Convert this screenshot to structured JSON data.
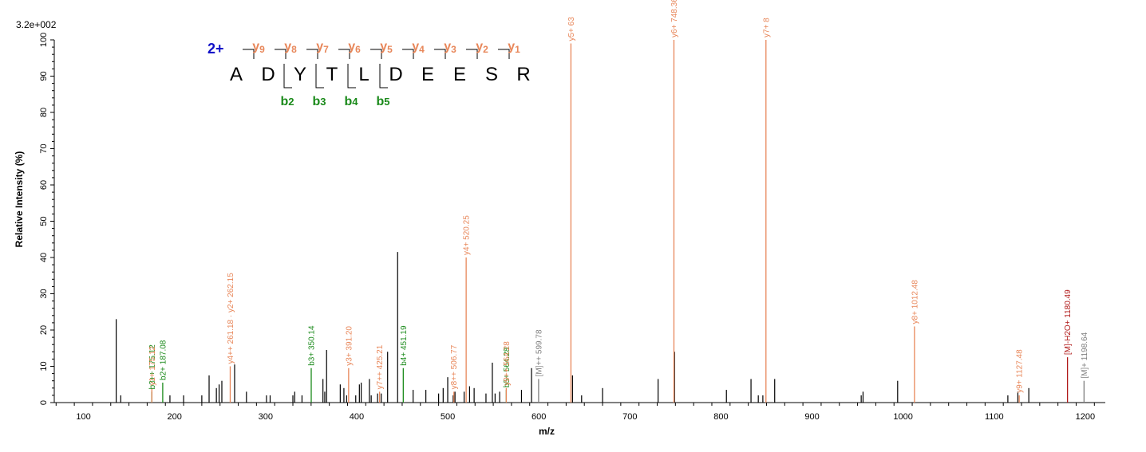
{
  "chart_data": {
    "type": "bar",
    "intensity_scale": "3.2e+002",
    "xlabel": "m/z",
    "ylabel": "Relative   Intensity (%)",
    "xlim": [
      68,
      1222
    ],
    "ylim": [
      0,
      100
    ],
    "xticks": [
      100,
      200,
      300,
      400,
      500,
      600,
      700,
      800,
      900,
      1000,
      1100,
      1200
    ],
    "yticks": [
      0,
      10,
      20,
      30,
      40,
      50,
      60,
      70,
      80,
      90,
      100
    ],
    "colors": {
      "y_ion": "#e8875a",
      "b_ion": "#1a8a1a",
      "precursor": "#808080",
      "precursor_loss": "#b01818",
      "unassigned": "#000000",
      "charge": "#1010c8"
    },
    "peaks_unassigned": [
      [
        136,
        23
      ],
      [
        141,
        2
      ],
      [
        195,
        2
      ],
      [
        210,
        2
      ],
      [
        230,
        2
      ],
      [
        238,
        7.5
      ],
      [
        246,
        4
      ],
      [
        249,
        5
      ],
      [
        252,
        6
      ],
      [
        266,
        10.5
      ],
      [
        279,
        3
      ],
      [
        301,
        2
      ],
      [
        305,
        2
      ],
      [
        330,
        2
      ],
      [
        332,
        3
      ],
      [
        340,
        2
      ],
      [
        363,
        6.5
      ],
      [
        365,
        3
      ],
      [
        367,
        14.5
      ],
      [
        382,
        5
      ],
      [
        386,
        4
      ],
      [
        389,
        2
      ],
      [
        399,
        2
      ],
      [
        403,
        5
      ],
      [
        405,
        5.5
      ],
      [
        414,
        6.5
      ],
      [
        416,
        2
      ],
      [
        423,
        2.5
      ],
      [
        427,
        2.5
      ],
      [
        434,
        14
      ],
      [
        445,
        41.5
      ],
      [
        462,
        3.5
      ],
      [
        476,
        3.5
      ],
      [
        490,
        2.5
      ],
      [
        495,
        4
      ],
      [
        500,
        7
      ],
      [
        506,
        2
      ],
      [
        508,
        3
      ],
      [
        518,
        3
      ],
      [
        524,
        4.5
      ],
      [
        529,
        4
      ],
      [
        542,
        2.5
      ],
      [
        549,
        11
      ],
      [
        552,
        2.5
      ],
      [
        557,
        3
      ],
      [
        581,
        3.5
      ],
      [
        592,
        9.5
      ],
      [
        637,
        7.5
      ],
      [
        647,
        2
      ],
      [
        670,
        4
      ],
      [
        731,
        6.5
      ],
      [
        749,
        14
      ],
      [
        806,
        3.5
      ],
      [
        833,
        6.5
      ],
      [
        841,
        2
      ],
      [
        846,
        2
      ],
      [
        859,
        6.5
      ],
      [
        954,
        2
      ],
      [
        956,
        3
      ],
      [
        994,
        6
      ],
      [
        1115,
        2
      ],
      [
        1126,
        3
      ],
      [
        1138,
        4
      ]
    ],
    "peaks_labeled": [
      {
        "mz": 175.12,
        "i": 3,
        "label": "b3++ 175.12",
        "ion": "b"
      },
      {
        "mz": 175.12,
        "i": 4,
        "label": "y1+ 175.12",
        "ion": "y"
      },
      {
        "mz": 187.08,
        "i": 5.5,
        "label": "b2+ 187.08",
        "ion": "b"
      },
      {
        "mz": 261.18,
        "i": 10,
        "label": "y4++ 261.18 · y2+ 262.15",
        "ion": "y"
      },
      {
        "mz": 350.14,
        "i": 9.5,
        "label": "b3+ 350.14",
        "ion": "b"
      },
      {
        "mz": 391.2,
        "i": 9.5,
        "label": "y3+ 391.20",
        "ion": "y"
      },
      {
        "mz": 425.21,
        "i": 3,
        "label": "y7++ 425.21",
        "ion": "y"
      },
      {
        "mz": 451.19,
        "i": 9.5,
        "label": "b4+ 451.19",
        "ion": "b"
      },
      {
        "mz": 506.77,
        "i": 3,
        "label": "y8++ 506.77",
        "ion": "y"
      },
      {
        "mz": 520.25,
        "i": 40,
        "label": "y4+ 520.25",
        "ion": "y"
      },
      {
        "mz": 564.28,
        "i": 3.5,
        "label": "b5+ 564.28",
        "ion": "b"
      },
      {
        "mz": 564.28,
        "i": 4,
        "label": "y9++ 564.28",
        "ion": "y"
      },
      {
        "mz": 599.78,
        "i": 6.5,
        "label": "[M]++ 599.78",
        "ion": "precursor"
      },
      {
        "mz": 635.28,
        "i": 99,
        "label": "y5+ 63",
        "ion": "y"
      },
      {
        "mz": 748.36,
        "i": 100,
        "label": "y6+ 748.36",
        "ion": "y"
      },
      {
        "mz": 849.41,
        "i": 100,
        "label": "y7+ 8",
        "ion": "y"
      },
      {
        "mz": 1012.48,
        "i": 21,
        "label": "y8+ 1012.48",
        "ion": "y"
      },
      {
        "mz": 1127.48,
        "i": 2,
        "label": "y9+ 1127.48",
        "ion": "y"
      },
      {
        "mz": 1180.49,
        "i": 12.5,
        "label": "[M]-H2O+ 1180.49",
        "ion": "precursor_loss"
      },
      {
        "mz": 1198.64,
        "i": 6,
        "label": "[M]+ 1198.64",
        "ion": "precursor"
      }
    ],
    "peptide": {
      "charge": "2+",
      "residues": [
        "A",
        "D",
        "Y",
        "T",
        "L",
        "D",
        "E",
        "E",
        "S",
        "R"
      ],
      "y_ions": [
        "9",
        "8",
        "7",
        "6",
        "5",
        "4",
        "3",
        "2",
        "1"
      ],
      "b_ions": [
        "2",
        "3",
        "4",
        "5"
      ]
    }
  }
}
